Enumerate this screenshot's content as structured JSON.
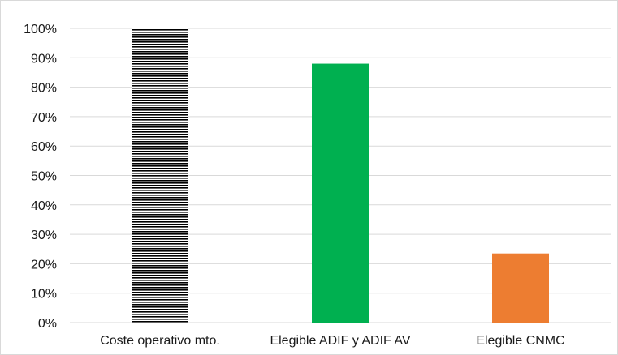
{
  "chart_data": {
    "type": "bar",
    "categories": [
      "Coste operativo mto.",
      "Elegible ADIF y ADIF AV",
      "Elegible CNMC"
    ],
    "values": [
      100,
      88,
      23.5
    ],
    "ylim": [
      0,
      100
    ],
    "yticks": [
      "0%",
      "10%",
      "20%",
      "30%",
      "40%",
      "50%",
      "60%",
      "70%",
      "80%",
      "90%",
      "100%"
    ],
    "grid": true,
    "bar_styles": [
      {
        "fill": "pattern-horizontal-lines",
        "color": "#000000"
      },
      {
        "fill": "solid",
        "color": "#00b050"
      },
      {
        "fill": "solid",
        "color": "#ed7d31"
      }
    ],
    "gridline_color": "#d9d9d9"
  }
}
